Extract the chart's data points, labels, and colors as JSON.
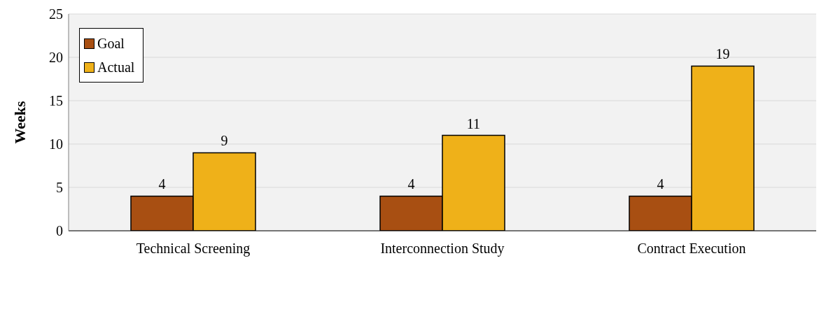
{
  "chart_data": {
    "type": "bar",
    "ylabel": "Weeks",
    "categories": [
      "Technical Screening",
      "Interconnection Study",
      "Contract Execution"
    ],
    "series": [
      {
        "name": "Goal",
        "color": "#a84f12",
        "values": [
          4,
          4,
          4
        ]
      },
      {
        "name": "Actual",
        "color": "#efb119",
        "values": [
          9,
          11,
          19
        ]
      }
    ],
    "ylim": [
      0,
      25
    ],
    "yticks": [
      0,
      5,
      10,
      15,
      20,
      25
    ],
    "grid": "y",
    "legend": "top left",
    "data_labels": true
  }
}
